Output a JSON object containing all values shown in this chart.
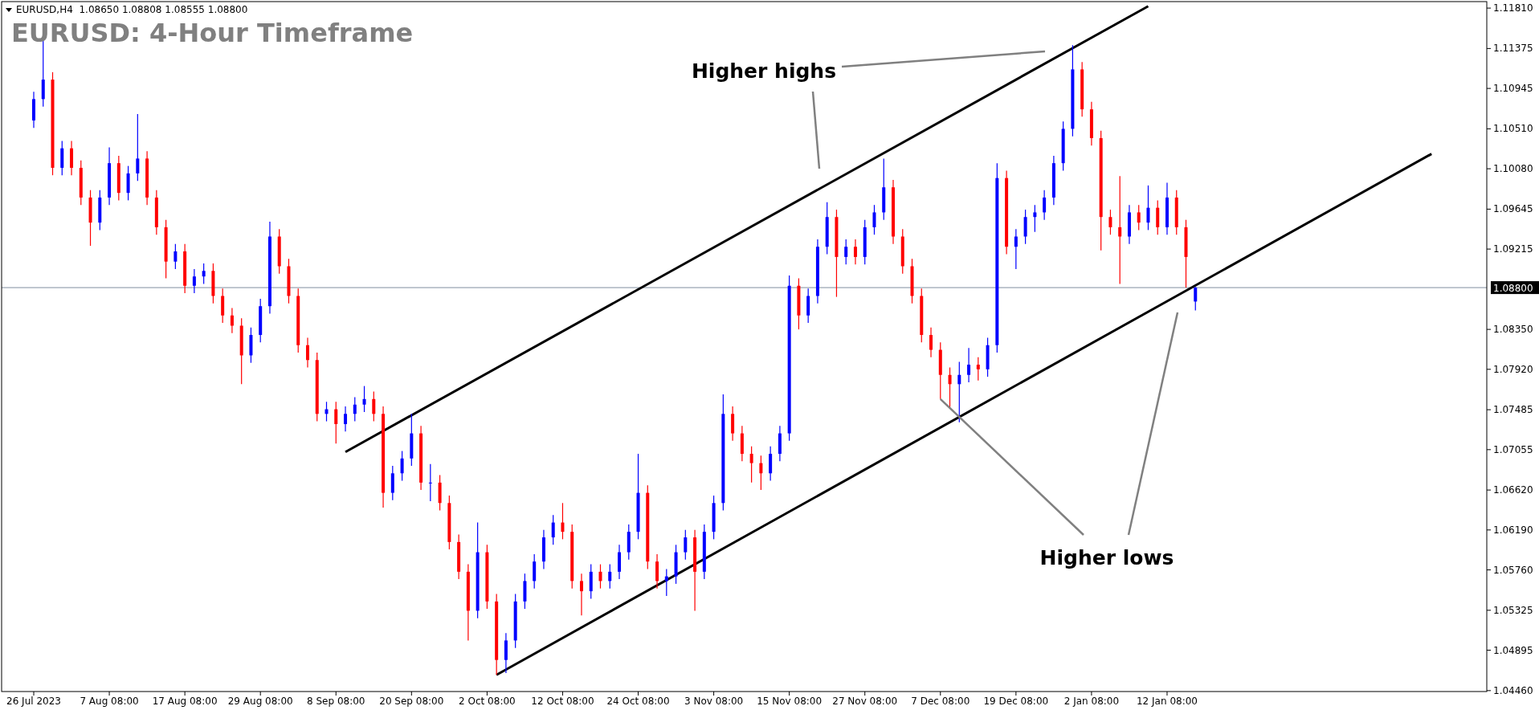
{
  "chart_data": {
    "type": "candlestick",
    "title": "EURUSD: 4-Hour Timeframe",
    "subtitle": "EURUSD,H4  1.08650 1.08808 1.08555 1.08800",
    "categories": [
      "26 Jul 2023",
      null,
      null,
      null,
      null,
      null,
      null,
      null,
      "7 Aug 08:00",
      null,
      null,
      null,
      null,
      null,
      null,
      null,
      "17 Aug 08:00",
      null,
      null,
      null,
      null,
      null,
      null,
      null,
      "29 Aug 08:00",
      null,
      null,
      null,
      null,
      null,
      null,
      null,
      "8 Sep 08:00",
      null,
      null,
      null,
      null,
      null,
      null,
      null,
      "20 Sep 08:00",
      null,
      null,
      null,
      null,
      null,
      null,
      null,
      "2 Oct 08:00",
      null,
      null,
      null,
      null,
      null,
      null,
      null,
      "12 Oct 08:00",
      null,
      null,
      null,
      null,
      null,
      null,
      null,
      "24 Oct 08:00",
      null,
      null,
      null,
      null,
      null,
      null,
      null,
      "3 Nov 08:00",
      null,
      null,
      null,
      null,
      null,
      null,
      null,
      "15 Nov 08:00",
      null,
      null,
      null,
      null,
      null,
      null,
      null,
      "27 Nov 08:00",
      null,
      null,
      null,
      null,
      null,
      null,
      null,
      "7 Dec 08:00",
      null,
      null,
      null,
      null,
      null,
      null,
      null,
      "19 Dec 08:00",
      null,
      null,
      null,
      null,
      null,
      null,
      null,
      "2 Jan 08:00",
      null,
      null,
      null,
      null,
      null,
      null,
      null,
      "12 Jan 08:00",
      null,
      null,
      null,
      null,
      null,
      null,
      null,
      null,
      null,
      null,
      null,
      null,
      null,
      null,
      null,
      null,
      null,
      null,
      null,
      null,
      null,
      null,
      null,
      null,
      null,
      null,
      null,
      null,
      null,
      null,
      null,
      null,
      null
    ],
    "colors": [
      "#0000ff",
      "#0000ff",
      "#ff0000",
      "#0000ff",
      "#ff0000",
      "#ff0000",
      "#ff0000",
      "#0000ff",
      "#0000ff",
      "#ff0000",
      "#0000ff",
      "#0000ff",
      "#ff0000",
      "#ff0000",
      "#ff0000",
      "#0000ff",
      "#ff0000",
      "#0000ff",
      "#0000ff",
      "#ff0000",
      "#ff0000",
      "#ff0000",
      "#ff0000",
      "#0000ff",
      "#0000ff",
      "#0000ff",
      "#ff0000",
      "#ff0000",
      "#ff0000",
      "#ff0000",
      "#ff0000",
      "#0000ff",
      "#ff0000",
      "#0000ff",
      "#0000ff",
      "#0000ff",
      "#ff0000",
      "#ff0000",
      "#0000ff",
      "#0000ff",
      "#0000ff",
      "#ff0000",
      "#0000ff",
      "#ff0000",
      "#ff0000",
      "#ff0000",
      "#ff0000",
      "#0000ff",
      "#ff0000",
      "#ff0000",
      "#0000ff",
      "#0000ff",
      "#0000ff",
      "#0000ff",
      "#0000ff",
      "#0000ff",
      "#ff0000",
      "#ff0000",
      "#ff0000",
      "#0000ff",
      "#ff0000",
      "#0000ff",
      "#0000ff",
      "#0000ff",
      "#0000ff",
      "#ff0000",
      "#ff0000",
      "#0000ff",
      "#0000ff",
      "#0000ff",
      "#ff0000",
      "#0000ff",
      "#0000ff",
      "#0000ff",
      "#ff0000",
      "#ff0000",
      "#ff0000",
      "#ff0000",
      "#0000ff",
      "#0000ff",
      "#0000ff",
      "#ff0000",
      "#0000ff",
      "#0000ff",
      "#0000ff",
      "#ff0000",
      "#0000ff",
      "#ff0000",
      "#0000ff",
      "#0000ff",
      "#0000ff",
      "#ff0000",
      "#ff0000",
      "#ff0000",
      "#ff0000",
      "#ff0000",
      "#ff0000",
      "#ff0000",
      "#0000ff",
      "#0000ff",
      "#ff0000",
      "#0000ff",
      "#0000ff",
      "#ff0000",
      "#0000ff",
      "#0000ff",
      "#0000ff",
      "#0000ff",
      "#0000ff",
      "#0000ff",
      "#0000ff",
      "#ff0000",
      "#ff0000",
      "#ff0000",
      "#ff0000",
      "#ff0000",
      "#0000ff",
      "#ff0000",
      "#0000ff",
      "#ff0000",
      "#0000ff",
      "#ff0000",
      "#ff0000",
      "#0000ff",
      null,
      null,
      null,
      null,
      null,
      null,
      null,
      null,
      null,
      null,
      null,
      null,
      null,
      null,
      null,
      null,
      null,
      null,
      null,
      null,
      null,
      null,
      null,
      null,
      null,
      null,
      null,
      null,
      null,
      null
    ],
    "ohlc": [
      [
        1.106,
        1.1091,
        1.1052,
        1.1083
      ],
      [
        1.1083,
        1.1147,
        1.1075,
        1.1104
      ],
      [
        1.1104,
        1.1112,
        1.1001,
        1.1009
      ],
      [
        1.1009,
        1.1038,
        1.1001,
        1.103
      ],
      [
        1.103,
        1.1038,
        1.1001,
        1.1009
      ],
      [
        1.1009,
        1.1017,
        1.0969,
        1.0977
      ],
      [
        1.0977,
        1.0985,
        1.0925,
        1.095
      ],
      [
        1.095,
        1.0985,
        1.0942,
        1.0977
      ],
      [
        1.0977,
        1.1031,
        1.0969,
        1.1014
      ],
      [
        1.1014,
        1.1022,
        1.0974,
        1.0982
      ],
      [
        1.0982,
        1.1011,
        1.0974,
        1.1003
      ],
      [
        1.1003,
        1.1067,
        1.0995,
        1.1019
      ],
      [
        1.1019,
        1.1027,
        1.0969,
        1.0977
      ],
      [
        1.0977,
        1.0985,
        1.0937,
        1.0945
      ],
      [
        1.0945,
        1.0953,
        1.089,
        1.0908
      ],
      [
        1.0908,
        1.0927,
        1.09,
        1.0919
      ],
      [
        1.0919,
        1.0927,
        1.0874,
        1.0882
      ],
      [
        1.0882,
        1.09,
        1.0874,
        1.0892
      ],
      [
        1.0892,
        1.0906,
        1.0884,
        1.0898
      ],
      [
        1.0898,
        1.0906,
        1.0863,
        1.0871
      ],
      [
        1.0871,
        1.0879,
        1.0842,
        1.085
      ],
      [
        1.085,
        1.0858,
        1.0831,
        1.0839
      ],
      [
        1.0839,
        1.0847,
        1.0776,
        1.0807
      ],
      [
        1.0807,
        1.0837,
        1.0799,
        1.0829
      ],
      [
        1.0829,
        1.0868,
        1.0821,
        1.086
      ],
      [
        1.086,
        1.0951,
        1.0852,
        1.0935
      ],
      [
        1.0935,
        1.0943,
        1.0895,
        1.0903
      ],
      [
        1.0903,
        1.0911,
        1.0863,
        1.0871
      ],
      [
        1.0871,
        1.0879,
        1.081,
        1.0818
      ],
      [
        1.0818,
        1.0826,
        1.0794,
        1.0802
      ],
      [
        1.0802,
        1.081,
        1.0736,
        1.0744
      ],
      [
        1.0744,
        1.0757,
        1.0736,
        1.0749
      ],
      [
        1.0749,
        1.0757,
        1.0712,
        1.0733
      ],
      [
        1.0733,
        1.0752,
        1.0725,
        1.0744
      ],
      [
        1.0744,
        1.0762,
        1.0736,
        1.0754
      ],
      [
        1.0754,
        1.0774,
        1.0746,
        1.076
      ],
      [
        1.076,
        1.0768,
        1.0736,
        1.0744
      ],
      [
        1.0744,
        1.0752,
        1.0643,
        1.0659
      ],
      [
        1.0659,
        1.0688,
        1.0651,
        1.068
      ],
      [
        1.068,
        1.0704,
        1.0672,
        1.0696
      ],
      [
        1.0696,
        1.0744,
        1.0688,
        1.0723
      ],
      [
        1.0723,
        1.0731,
        1.0662,
        1.067
      ],
      [
        1.067,
        1.069,
        1.065,
        1.067
      ],
      [
        1.067,
        1.0678,
        1.064,
        1.0648
      ],
      [
        1.0648,
        1.0656,
        1.0598,
        1.0606
      ],
      [
        1.0606,
        1.0614,
        1.0566,
        1.0574
      ],
      [
        1.0574,
        1.0582,
        1.05,
        1.0532
      ],
      [
        1.0532,
        1.0627,
        1.0524,
        1.0595
      ],
      [
        1.0595,
        1.0603,
        1.0534,
        1.0542
      ],
      [
        1.0542,
        1.055,
        1.0463,
        1.0479
      ],
      [
        1.0479,
        1.0508,
        1.0465,
        1.05
      ],
      [
        1.05,
        1.055,
        1.0492,
        1.0542
      ],
      [
        1.0542,
        1.0572,
        1.0534,
        1.0564
      ],
      [
        1.0564,
        1.0593,
        1.0556,
        1.0585
      ],
      [
        1.0585,
        1.0619,
        1.0577,
        1.0611
      ],
      [
        1.0611,
        1.0635,
        1.0603,
        1.0627
      ],
      [
        1.0627,
        1.0648,
        1.0609,
        1.0617
      ],
      [
        1.0617,
        1.0625,
        1.0556,
        1.0564
      ],
      [
        1.0564,
        1.0572,
        1.0527,
        1.0553
      ],
      [
        1.0553,
        1.0582,
        1.0545,
        1.0574
      ],
      [
        1.0574,
        1.0582,
        1.0556,
        1.0564
      ],
      [
        1.0564,
        1.0582,
        1.0556,
        1.0574
      ],
      [
        1.0574,
        1.0603,
        1.0566,
        1.0595
      ],
      [
        1.0595,
        1.0625,
        1.0587,
        1.0617
      ],
      [
        1.0617,
        1.0701,
        1.0609,
        1.0659
      ],
      [
        1.0659,
        1.0667,
        1.0577,
        1.0585
      ],
      [
        1.0585,
        1.0593,
        1.0556,
        1.0564
      ],
      [
        1.0564,
        1.0577,
        1.0548,
        1.0569
      ],
      [
        1.0569,
        1.0603,
        1.0561,
        1.0595
      ],
      [
        1.0595,
        1.0619,
        1.0587,
        1.0611
      ],
      [
        1.0611,
        1.0619,
        1.0532,
        1.0574
      ],
      [
        1.0574,
        1.0625,
        1.0566,
        1.0617
      ],
      [
        1.0617,
        1.0656,
        1.0609,
        1.0648
      ],
      [
        1.0648,
        1.0765,
        1.064,
        1.0744
      ],
      [
        1.0744,
        1.0752,
        1.0715,
        1.0723
      ],
      [
        1.0723,
        1.0731,
        1.0693,
        1.0701
      ],
      [
        1.0701,
        1.0709,
        1.067,
        1.0691
      ],
      [
        1.0691,
        1.0699,
        1.0662,
        1.068
      ],
      [
        1.068,
        1.0709,
        1.0672,
        1.0701
      ],
      [
        1.0701,
        1.0731,
        1.0693,
        1.0723
      ],
      [
        1.0723,
        1.0893,
        1.0715,
        1.0882
      ],
      [
        1.0882,
        1.089,
        1.0835,
        1.085
      ],
      [
        1.085,
        1.0879,
        1.0842,
        1.0871
      ],
      [
        1.0871,
        1.0932,
        1.0863,
        1.0924
      ],
      [
        1.0924,
        1.0972,
        1.0916,
        1.0956
      ],
      [
        1.0956,
        1.0964,
        1.087,
        1.0913
      ],
      [
        1.0913,
        1.0932,
        1.0905,
        1.0924
      ],
      [
        1.0924,
        1.0932,
        1.0905,
        1.0913
      ],
      [
        1.0913,
        1.0953,
        1.0905,
        1.0945
      ],
      [
        1.0945,
        1.0969,
        1.0937,
        1.0961
      ],
      [
        1.0961,
        1.1019,
        1.0953,
        1.0988
      ],
      [
        1.0988,
        1.0996,
        1.0927,
        1.0935
      ],
      [
        1.0935,
        1.0943,
        1.0895,
        1.0903
      ],
      [
        1.0903,
        1.0911,
        1.0863,
        1.0871
      ],
      [
        1.0871,
        1.0879,
        1.0821,
        1.0829
      ],
      [
        1.0829,
        1.0837,
        1.0805,
        1.0813
      ],
      [
        1.0813,
        1.0821,
        1.076,
        1.0786
      ],
      [
        1.0786,
        1.0794,
        1.075,
        1.0776
      ],
      [
        1.0776,
        1.08,
        1.0735,
        1.0786
      ],
      [
        1.0786,
        1.0815,
        1.0778,
        1.0797
      ],
      [
        1.0797,
        1.0805,
        1.078,
        1.0792
      ],
      [
        1.0792,
        1.0826,
        1.0784,
        1.0818
      ],
      [
        1.0818,
        1.1014,
        1.081,
        1.0998
      ],
      [
        1.0998,
        1.1006,
        1.0916,
        1.0924
      ],
      [
        1.0924,
        1.0943,
        1.09,
        1.0935
      ],
      [
        1.0935,
        1.0964,
        1.0927,
        1.0956
      ],
      [
        1.0956,
        1.0969,
        1.094,
        1.0961
      ],
      [
        1.0961,
        1.0985,
        1.0953,
        1.0977
      ],
      [
        1.0977,
        1.1022,
        1.0969,
        1.1014
      ],
      [
        1.1014,
        1.1059,
        1.1006,
        1.1051
      ],
      [
        1.1051,
        1.1141,
        1.1043,
        1.1115
      ],
      [
        1.1115,
        1.1123,
        1.1064,
        1.1072
      ],
      [
        1.1072,
        1.108,
        1.1033,
        1.1041
      ],
      [
        1.1041,
        1.1049,
        1.092,
        1.0956
      ],
      [
        1.0956,
        1.0964,
        1.0937,
        1.0945
      ],
      [
        1.0945,
        1.1,
        1.0884,
        1.0935
      ],
      [
        1.0935,
        1.0969,
        1.0927,
        1.0961
      ],
      [
        1.0961,
        1.0969,
        1.0942,
        1.095
      ],
      [
        1.095,
        1.099,
        1.0942,
        1.0966
      ],
      [
        1.0966,
        1.0974,
        1.0937,
        1.0945
      ],
      [
        1.0945,
        1.0993,
        1.0937,
        1.0977
      ],
      [
        1.0977,
        1.0985,
        1.0937,
        1.0945
      ],
      [
        1.0945,
        1.0953,
        1.088,
        1.0913
      ],
      [
        1.0865,
        1.08808,
        1.08555,
        1.088
      ],
      null,
      null,
      null,
      null,
      null,
      null,
      null,
      null,
      null,
      null,
      null,
      null,
      null,
      null,
      null,
      null,
      null,
      null,
      null,
      null,
      null,
      null,
      null,
      null,
      null,
      null,
      null,
      null,
      null,
      null
    ],
    "series": [
      {
        "type": "line",
        "color": "#000000",
        "values": [
          null,
          null,
          null,
          null,
          null,
          null,
          null,
          null,
          null,
          null,
          null,
          null,
          null,
          null,
          null,
          null,
          null,
          null,
          null,
          null,
          null,
          null,
          null,
          null,
          null,
          null,
          null,
          null,
          null,
          null,
          null,
          null,
          null,
          1.0703,
          null,
          null,
          null,
          null,
          null,
          null,
          null,
          null,
          null,
          null,
          null,
          null,
          null,
          null,
          null,
          null,
          null,
          null,
          null,
          null,
          null,
          null,
          null,
          null,
          null,
          null,
          null,
          null,
          null,
          null,
          null,
          null,
          null,
          null,
          null,
          null,
          null,
          null,
          null,
          null,
          null,
          null,
          null,
          null,
          null,
          null,
          null,
          null,
          null,
          null,
          null,
          null,
          null,
          null,
          null,
          null,
          null,
          null,
          null,
          null,
          null,
          null,
          null,
          null,
          null,
          null,
          null,
          null,
          null,
          null,
          null,
          null,
          null,
          null,
          null,
          null,
          null,
          null,
          null,
          null,
          null,
          null,
          null,
          null,
          1.1183,
          null,
          null,
          null,
          null,
          null,
          null,
          null,
          null,
          null,
          null,
          null,
          null,
          null,
          null,
          null,
          null,
          null,
          null,
          null,
          null,
          null,
          null,
          null,
          null,
          null,
          null,
          null,
          null,
          null,
          null,
          null,
          null,
          null,
          null,
          null
        ]
      },
      {
        "type": "line",
        "color": "#000000",
        "values": [
          null,
          null,
          null,
          null,
          null,
          null,
          null,
          null,
          null,
          null,
          null,
          null,
          null,
          null,
          null,
          null,
          null,
          null,
          null,
          null,
          null,
          null,
          null,
          null,
          null,
          null,
          null,
          null,
          null,
          null,
          null,
          null,
          null,
          null,
          null,
          null,
          null,
          null,
          null,
          null,
          null,
          null,
          null,
          null,
          null,
          null,
          null,
          null,
          null,
          1.0463,
          null,
          null,
          null,
          null,
          null,
          null,
          null,
          null,
          null,
          null,
          null,
          null,
          null,
          null,
          null,
          null,
          null,
          null,
          null,
          null,
          null,
          null,
          null,
          null,
          null,
          null,
          null,
          null,
          null,
          null,
          null,
          null,
          null,
          null,
          null,
          null,
          null,
          null,
          null,
          null,
          null,
          null,
          null,
          null,
          null,
          null,
          null,
          null,
          null,
          null,
          null,
          null,
          null,
          null,
          null,
          null,
          null,
          null,
          null,
          null,
          null,
          null,
          null,
          null,
          null,
          null,
          null,
          null,
          null,
          null,
          null,
          null,
          null,
          null,
          null,
          null,
          null,
          null,
          null,
          null,
          null,
          null,
          null,
          null,
          null,
          null,
          null,
          null,
          null,
          null,
          null,
          null,
          null,
          null,
          null,
          null,
          null,
          null,
          1.1024,
          null,
          null,
          null,
          null,
          null
        ]
      }
    ],
    "ref_lines": [
      {
        "axis": "y",
        "value": 1.088,
        "label": "1.08800",
        "color": "#8090a0"
      }
    ],
    "annotations": [
      "Higher highs",
      {
        "text": "Higher lows",
        "x": "7 Dec 08:00",
        "y": 1.076
      }
    ],
    "ylim": [
      1.0445,
      1.1188
    ],
    "yticks": [
      {
        "value": 1.1181,
        "label": "1.11810"
      },
      1.11375,
      1.10945,
      {
        "value": 1.1051,
        "label": "1.10510"
      },
      {
        "value": 1.1008,
        "label": "1.10080"
      },
      1.09645,
      1.09215,
      {
        "value": 1.0835,
        "label": "1.08350"
      },
      {
        "value": 1.0792,
        "label": "1.07920"
      },
      1.07485,
      1.07055,
      {
        "value": 1.0662,
        "label": "1.06620"
      },
      {
        "value": 1.0619,
        "label": "1.06190"
      },
      {
        "value": 1.0576,
        "label": "1.05760"
      },
      1.05325,
      1.04895,
      {
        "value": 1.0446,
        "label": "1.04460"
      }
    ]
  }
}
